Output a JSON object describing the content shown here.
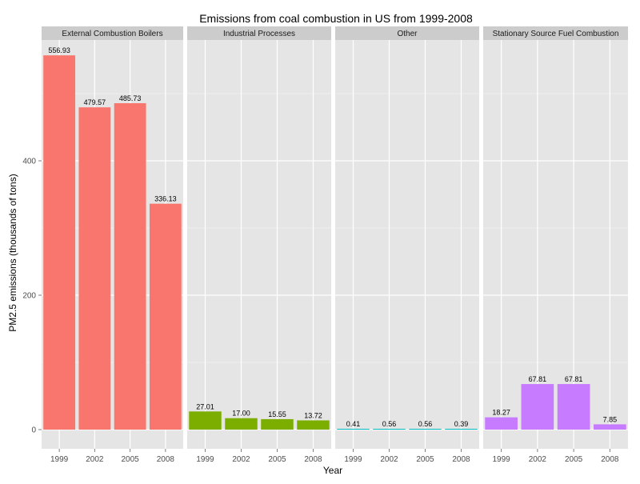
{
  "chart_data": {
    "type": "bar",
    "title": "Emissions from coal combustion in US from 1999-2008",
    "xlabel": "Year",
    "ylabel": "PM2.5 emissions (thousands of tons)",
    "categories": [
      "1999",
      "2002",
      "2005",
      "2008"
    ],
    "ylim": [
      0,
      580
    ],
    "yticks": [
      0,
      200,
      400
    ],
    "grid": true,
    "facets": [
      {
        "name": "External Combustion Boilers",
        "color": "#F8766D",
        "values": [
          556.93,
          479.57,
          485.73,
          336.13
        ],
        "labels": [
          "556.93",
          "479.57",
          "485.73",
          "336.13"
        ]
      },
      {
        "name": "Industrial Processes",
        "color": "#7CAE00",
        "values": [
          27.01,
          17.0,
          15.55,
          13.72
        ],
        "labels": [
          "27.01",
          "17.00",
          "15.55",
          "13.72"
        ]
      },
      {
        "name": "Other",
        "color": "#00BFC4",
        "values": [
          0.41,
          0.56,
          0.56,
          0.39
        ],
        "labels": [
          "0.41",
          "0.56",
          "0.56",
          "0.39"
        ]
      },
      {
        "name": "Stationary Source Fuel Combustion",
        "color": "#C77CFF",
        "values": [
          18.27,
          67.81,
          67.81,
          7.85
        ],
        "labels": [
          "18.27",
          "67.81",
          "67.81",
          "7.85"
        ]
      }
    ]
  }
}
